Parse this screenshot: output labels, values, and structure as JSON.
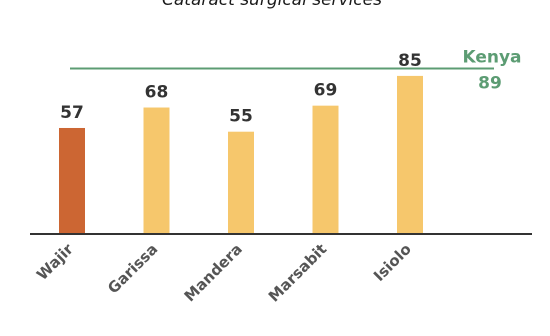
{
  "chart_data": {
    "type": "bar",
    "title": "Cataract surgical services",
    "categories": [
      "Wajir",
      "Garissa",
      "Mandera",
      "Marsabit",
      "Isiolo"
    ],
    "values": [
      57,
      68,
      55,
      69,
      85
    ],
    "bar_colors": [
      "#cc6633",
      "#f6c76c",
      "#f6c76c",
      "#f6c76c",
      "#f6c76c"
    ],
    "ylim": [
      0,
      100
    ],
    "grid": false,
    "reference_line": {
      "label": "Kenya",
      "value": 89,
      "color": "#5c9c73"
    }
  }
}
